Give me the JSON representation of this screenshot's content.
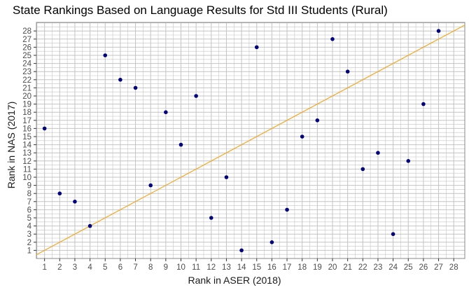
{
  "chart_data": {
    "type": "scatter",
    "title": "State Rankings Based on Language Results for Std III Students (Rural)",
    "xlabel": "Rank in ASER (2018)",
    "ylabel": "Rank in NAS (2017)",
    "xlim": [
      0,
      28
    ],
    "ylim": [
      0,
      29
    ],
    "xticks": [
      "1",
      "2",
      "3",
      "4",
      "5",
      "6",
      "7",
      "8",
      "9",
      "10",
      "11",
      "12",
      "13",
      "14",
      "15",
      "16",
      "17",
      "18",
      "19",
      "20",
      "21",
      "22",
      "23",
      "24",
      "25",
      "26",
      "27",
      "28"
    ],
    "yticks": [
      "1",
      "2",
      "3",
      "4",
      "5",
      "6",
      "7",
      "8",
      "9",
      "10",
      "11",
      "12",
      "13",
      "14",
      "15",
      "16",
      "17",
      "18",
      "19",
      "20",
      "21",
      "22",
      "23",
      "24",
      "25",
      "26",
      "27",
      "28"
    ],
    "grid": true,
    "reference_line": {
      "type": "y=x",
      "color": "#f5a623"
    },
    "point_color": "#00007f",
    "points": [
      {
        "x": 1,
        "y": 16
      },
      {
        "x": 2,
        "y": 8
      },
      {
        "x": 3,
        "y": 7
      },
      {
        "x": 4,
        "y": 4
      },
      {
        "x": 5,
        "y": 25
      },
      {
        "x": 6,
        "y": 22
      },
      {
        "x": 7,
        "y": 21
      },
      {
        "x": 8,
        "y": 9
      },
      {
        "x": 9,
        "y": 18
      },
      {
        "x": 10,
        "y": 14
      },
      {
        "x": 11,
        "y": 20
      },
      {
        "x": 12,
        "y": 5
      },
      {
        "x": 13,
        "y": 10
      },
      {
        "x": 14,
        "y": 1
      },
      {
        "x": 15,
        "y": 26
      },
      {
        "x": 16,
        "y": 2
      },
      {
        "x": 17,
        "y": 6
      },
      {
        "x": 18,
        "y": 15
      },
      {
        "x": 19,
        "y": 17
      },
      {
        "x": 20,
        "y": 27
      },
      {
        "x": 21,
        "y": 23
      },
      {
        "x": 22,
        "y": 11
      },
      {
        "x": 23,
        "y": 13
      },
      {
        "x": 24,
        "y": 3
      },
      {
        "x": 25,
        "y": 12
      },
      {
        "x": 26,
        "y": 19
      },
      {
        "x": 27,
        "y": 28
      }
    ]
  }
}
